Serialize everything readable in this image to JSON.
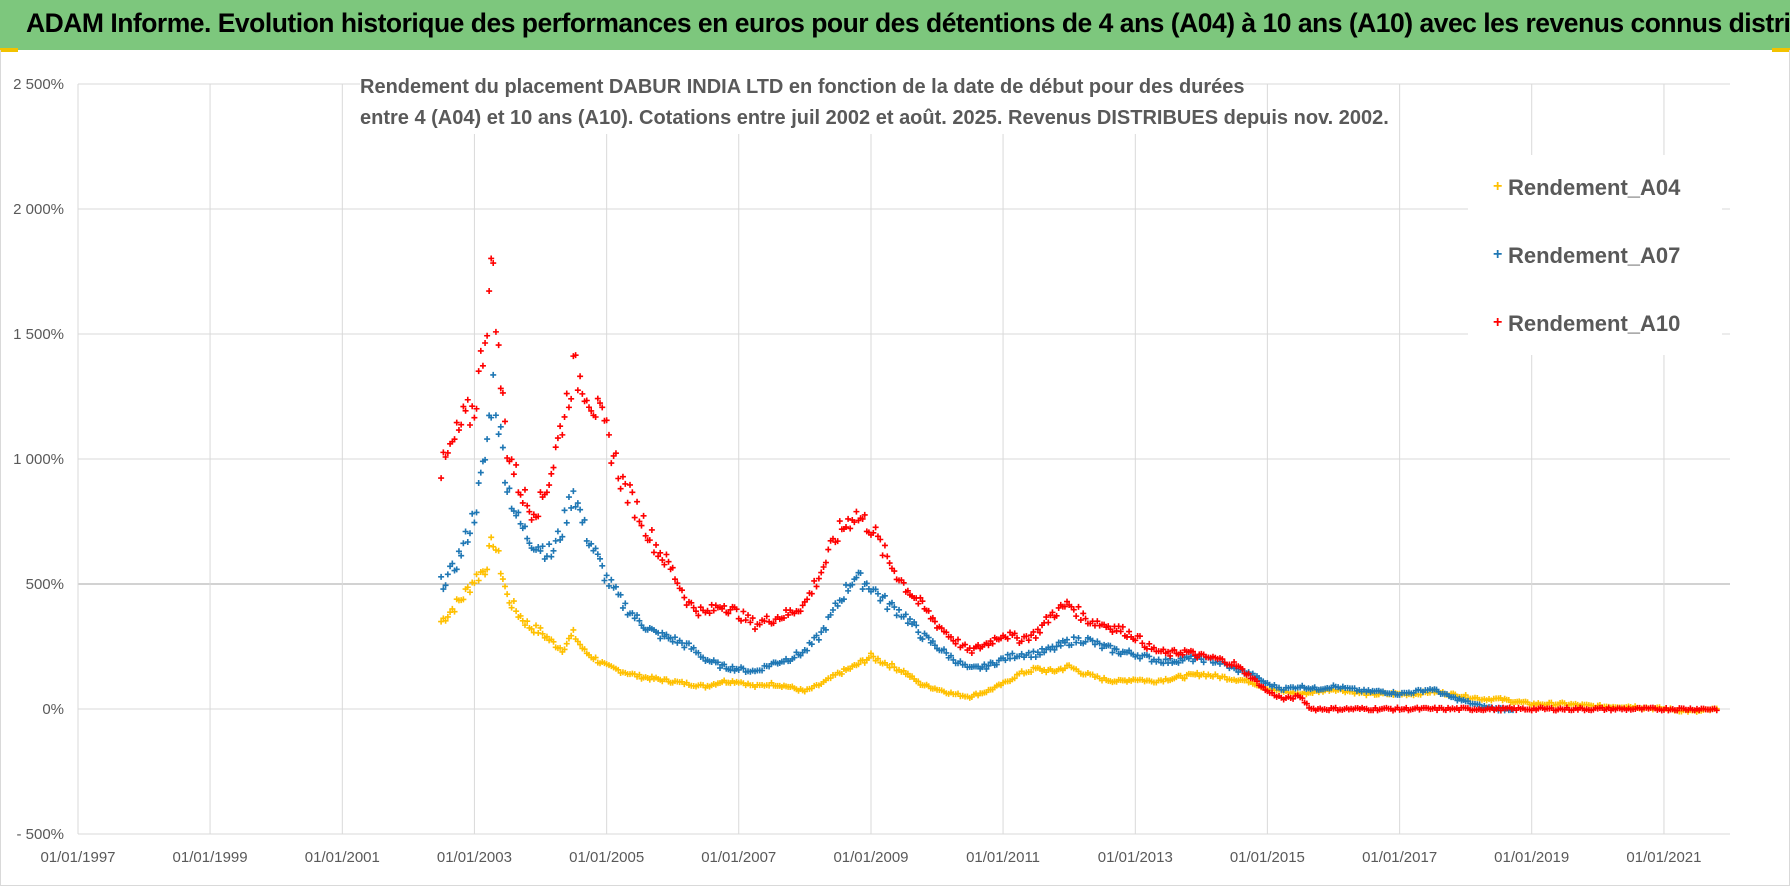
{
  "banner": {
    "title": "ADAM Informe. Evolution historique des performances en euros pour des détentions de 4 ans (A04) à 10 ans (A10) avec les revenus connus distribués"
  },
  "chart_data": {
    "type": "scatter",
    "title_line1": "Rendement du placement DABUR INDIA LTD en fonction de la date de début pour des durées",
    "title_line2": "entre 4 (A04) et 10 ans (A10).  Cotations entre juil 2002 et août. 2025.  Revenus DISTRIBUES depuis nov. 2002.",
    "xlabel": "",
    "ylabel": "",
    "x_ticks": [
      "01/01/1997",
      "01/01/1999",
      "01/01/2001",
      "01/01/2003",
      "01/01/2005",
      "01/01/2007",
      "01/01/2009",
      "01/01/2011",
      "01/01/2013",
      "01/01/2015",
      "01/01/2017",
      "01/01/2019",
      "01/01/2021"
    ],
    "x_range": [
      "1997-01-01",
      "2022-01-01"
    ],
    "y_ticks": [
      "- 500%",
      "0%",
      "500%",
      "1 000%",
      "1 500%",
      "2 000%",
      "2 500%"
    ],
    "ylim": [
      -500,
      2500
    ],
    "grid": true,
    "legend_position": "right",
    "series": [
      {
        "name": "Rendement_A04",
        "color": "#ffc000",
        "points": [
          [
            "2002-07-01",
            350
          ],
          [
            "2002-09-01",
            400
          ],
          [
            "2002-11-01",
            450
          ],
          [
            "2003-01-01",
            520
          ],
          [
            "2003-03-01",
            560
          ],
          [
            "2003-04-15",
            680
          ],
          [
            "2003-05-15",
            600
          ],
          [
            "2003-07-01",
            450
          ],
          [
            "2003-09-01",
            380
          ],
          [
            "2003-11-01",
            330
          ],
          [
            "2004-01-01",
            310
          ],
          [
            "2004-03-01",
            270
          ],
          [
            "2004-05-01",
            240
          ],
          [
            "2004-07-01",
            300
          ],
          [
            "2004-09-01",
            230
          ],
          [
            "2004-11-01",
            200
          ],
          [
            "2005-01-01",
            170
          ],
          [
            "2005-04-01",
            150
          ],
          [
            "2005-07-01",
            130
          ],
          [
            "2005-10-01",
            120
          ],
          [
            "2006-01-01",
            110
          ],
          [
            "2006-04-01",
            100
          ],
          [
            "2006-07-01",
            90
          ],
          [
            "2006-10-01",
            110
          ],
          [
            "2007-01-01",
            110
          ],
          [
            "2007-04-01",
            90
          ],
          [
            "2007-07-01",
            100
          ],
          [
            "2007-10-01",
            90
          ],
          [
            "2008-01-01",
            70
          ],
          [
            "2008-04-01",
            100
          ],
          [
            "2008-07-01",
            140
          ],
          [
            "2008-10-01",
            170
          ],
          [
            "2009-01-01",
            210
          ],
          [
            "2009-04-01",
            180
          ],
          [
            "2009-07-01",
            150
          ],
          [
            "2009-10-01",
            100
          ],
          [
            "2010-01-01",
            80
          ],
          [
            "2010-04-01",
            60
          ],
          [
            "2010-07-01",
            50
          ],
          [
            "2010-10-01",
            70
          ],
          [
            "2011-01-01",
            100
          ],
          [
            "2011-04-01",
            140
          ],
          [
            "2011-07-01",
            160
          ],
          [
            "2011-10-01",
            150
          ],
          [
            "2012-01-01",
            170
          ],
          [
            "2012-04-01",
            140
          ],
          [
            "2012-07-01",
            120
          ],
          [
            "2012-10-01",
            110
          ],
          [
            "2013-01-01",
            120
          ],
          [
            "2013-04-01",
            110
          ],
          [
            "2013-07-01",
            120
          ],
          [
            "2013-10-01",
            130
          ],
          [
            "2014-01-01",
            140
          ],
          [
            "2014-04-01",
            130
          ],
          [
            "2014-07-01",
            120
          ],
          [
            "2014-10-01",
            110
          ],
          [
            "2015-01-01",
            80
          ],
          [
            "2015-04-01",
            70
          ],
          [
            "2015-07-01",
            60
          ],
          [
            "2015-10-01",
            70
          ],
          [
            "2016-01-01",
            80
          ],
          [
            "2016-04-01",
            70
          ],
          [
            "2016-07-01",
            60
          ],
          [
            "2016-10-01",
            60
          ],
          [
            "2017-01-01",
            60
          ],
          [
            "2017-04-01",
            60
          ],
          [
            "2017-07-01",
            70
          ],
          [
            "2017-10-01",
            60
          ],
          [
            "2018-01-01",
            50
          ],
          [
            "2018-04-01",
            40
          ],
          [
            "2018-07-01",
            40
          ],
          [
            "2018-10-01",
            30
          ],
          [
            "2019-01-01",
            20
          ],
          [
            "2019-07-01",
            20
          ],
          [
            "2020-01-01",
            10
          ],
          [
            "2020-07-01",
            10
          ],
          [
            "2021-01-01",
            0
          ],
          [
            "2021-07-01",
            -10
          ],
          [
            "2021-11-01",
            0
          ]
        ]
      },
      {
        "name": "Rendement_A07",
        "color": "#1f77b4",
        "points": [
          [
            "2002-07-01",
            500
          ],
          [
            "2002-09-01",
            550
          ],
          [
            "2002-11-01",
            650
          ],
          [
            "2003-01-01",
            780
          ],
          [
            "2003-03-01",
            1000
          ],
          [
            "2003-04-15",
            1300
          ],
          [
            "2003-05-15",
            1150
          ],
          [
            "2003-07-01",
            900
          ],
          [
            "2003-09-01",
            750
          ],
          [
            "2003-11-01",
            680
          ],
          [
            "2004-01-01",
            650
          ],
          [
            "2004-03-01",
            620
          ],
          [
            "2004-05-01",
            720
          ],
          [
            "2004-07-01",
            880
          ],
          [
            "2004-09-01",
            720
          ],
          [
            "2004-11-01",
            620
          ],
          [
            "2005-01-01",
            520
          ],
          [
            "2005-04-01",
            420
          ],
          [
            "2005-07-01",
            350
          ],
          [
            "2005-10-01",
            300
          ],
          [
            "2006-01-01",
            280
          ],
          [
            "2006-04-01",
            250
          ],
          [
            "2006-07-01",
            200
          ],
          [
            "2006-10-01",
            170
          ],
          [
            "2007-01-01",
            160
          ],
          [
            "2007-04-01",
            150
          ],
          [
            "2007-07-01",
            180
          ],
          [
            "2007-10-01",
            200
          ],
          [
            "2008-01-01",
            230
          ],
          [
            "2008-04-01",
            300
          ],
          [
            "2008-07-01",
            420
          ],
          [
            "2008-10-01",
            530
          ],
          [
            "2009-01-01",
            490
          ],
          [
            "2009-04-01",
            420
          ],
          [
            "2009-07-01",
            380
          ],
          [
            "2009-10-01",
            300
          ],
          [
            "2010-01-01",
            250
          ],
          [
            "2010-04-01",
            200
          ],
          [
            "2010-07-01",
            160
          ],
          [
            "2010-10-01",
            170
          ],
          [
            "2011-01-01",
            200
          ],
          [
            "2011-04-01",
            220
          ],
          [
            "2011-07-01",
            220
          ],
          [
            "2011-10-01",
            240
          ],
          [
            "2012-01-01",
            270
          ],
          [
            "2012-04-01",
            280
          ],
          [
            "2012-07-01",
            250
          ],
          [
            "2012-10-01",
            230
          ],
          [
            "2013-01-01",
            220
          ],
          [
            "2013-04-01",
            200
          ],
          [
            "2013-07-01",
            190
          ],
          [
            "2013-10-01",
            200
          ],
          [
            "2014-01-01",
            200
          ],
          [
            "2014-04-01",
            190
          ],
          [
            "2014-07-01",
            160
          ],
          [
            "2014-10-01",
            140
          ],
          [
            "2015-01-01",
            100
          ],
          [
            "2015-04-01",
            80
          ],
          [
            "2015-07-01",
            90
          ],
          [
            "2015-10-01",
            80
          ],
          [
            "2016-01-01",
            90
          ],
          [
            "2016-04-01",
            80
          ],
          [
            "2016-07-01",
            70
          ],
          [
            "2016-10-01",
            70
          ],
          [
            "2017-01-01",
            60
          ],
          [
            "2017-04-01",
            70
          ],
          [
            "2017-07-01",
            80
          ],
          [
            "2017-10-01",
            50
          ],
          [
            "2018-01-01",
            30
          ],
          [
            "2018-04-01",
            10
          ],
          [
            "2018-07-01",
            0
          ],
          [
            "2018-10-01",
            0
          ]
        ]
      },
      {
        "name": "Rendement_A10",
        "color": "#ff0000",
        "points": [
          [
            "2002-07-01",
            950
          ],
          [
            "2002-09-01",
            1050
          ],
          [
            "2002-11-01",
            1150
          ],
          [
            "2003-01-01",
            1200
          ],
          [
            "2003-03-01",
            1500
          ],
          [
            "2003-04-15",
            1800
          ],
          [
            "2003-05-15",
            1400
          ],
          [
            "2003-07-01",
            1050
          ],
          [
            "2003-09-01",
            900
          ],
          [
            "2003-11-01",
            800
          ],
          [
            "2004-01-01",
            820
          ],
          [
            "2004-03-01",
            950
          ],
          [
            "2004-05-01",
            1150
          ],
          [
            "2004-07-01",
            1350
          ],
          [
            "2004-09-01",
            1300
          ],
          [
            "2004-11-01",
            1200
          ],
          [
            "2005-01-01",
            1100
          ],
          [
            "2005-04-01",
            900
          ],
          [
            "2005-07-01",
            780
          ],
          [
            "2005-10-01",
            650
          ],
          [
            "2006-01-01",
            550
          ],
          [
            "2006-04-01",
            420
          ],
          [
            "2006-07-01",
            380
          ],
          [
            "2006-10-01",
            420
          ],
          [
            "2007-01-01",
            380
          ],
          [
            "2007-04-01",
            340
          ],
          [
            "2007-07-01",
            360
          ],
          [
            "2007-10-01",
            380
          ],
          [
            "2008-01-01",
            420
          ],
          [
            "2008-04-01",
            550
          ],
          [
            "2008-07-01",
            700
          ],
          [
            "2008-10-01",
            780
          ],
          [
            "2009-01-01",
            730
          ],
          [
            "2009-04-01",
            600
          ],
          [
            "2009-07-01",
            500
          ],
          [
            "2009-10-01",
            420
          ],
          [
            "2010-01-01",
            340
          ],
          [
            "2010-04-01",
            280
          ],
          [
            "2010-07-01",
            230
          ],
          [
            "2010-10-01",
            260
          ],
          [
            "2011-01-01",
            300
          ],
          [
            "2011-04-01",
            280
          ],
          [
            "2011-07-01",
            300
          ],
          [
            "2011-10-01",
            380
          ],
          [
            "2012-01-01",
            420
          ],
          [
            "2012-04-01",
            360
          ],
          [
            "2012-07-01",
            340
          ],
          [
            "2012-10-01",
            320
          ],
          [
            "2013-01-01",
            290
          ],
          [
            "2013-04-01",
            240
          ],
          [
            "2013-07-01",
            220
          ],
          [
            "2013-10-01",
            230
          ],
          [
            "2014-01-01",
            210
          ],
          [
            "2014-04-01",
            200
          ],
          [
            "2014-07-01",
            180
          ],
          [
            "2014-10-01",
            130
          ],
          [
            "2015-01-01",
            70
          ],
          [
            "2015-04-01",
            40
          ],
          [
            "2015-07-01",
            50
          ],
          [
            "2015-09-01",
            0
          ],
          [
            "2016-01-01",
            0
          ],
          [
            "2017-01-01",
            0
          ],
          [
            "2018-01-01",
            0
          ],
          [
            "2019-01-01",
            0
          ],
          [
            "2020-01-01",
            0
          ],
          [
            "2021-01-01",
            0
          ],
          [
            "2021-11-01",
            0
          ]
        ]
      }
    ]
  }
}
